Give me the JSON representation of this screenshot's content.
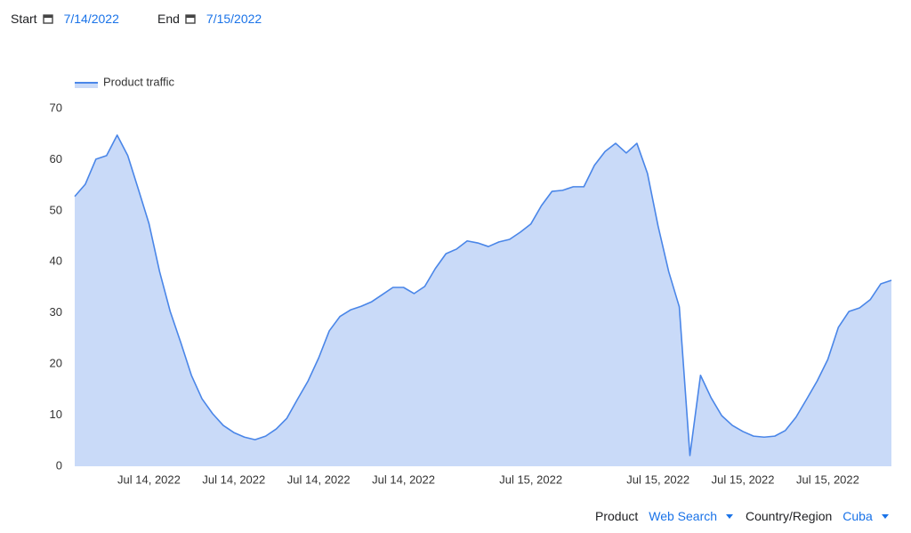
{
  "filters": {
    "start_label": "Start",
    "start_date": "7/14/2022",
    "end_label": "End",
    "end_date": "7/15/2022",
    "product_label": "Product",
    "product": "Web Search",
    "region_label": "Country/Region",
    "region": "Cuba"
  },
  "chart_data": {
    "type": "area",
    "categories": [
      null,
      null,
      null,
      null,
      null,
      null,
      null,
      "Jul 14, 2022",
      null,
      null,
      null,
      null,
      null,
      null,
      null,
      "Jul 14, 2022",
      null,
      null,
      null,
      null,
      null,
      null,
      null,
      "Jul 14, 2022",
      null,
      null,
      null,
      null,
      null,
      null,
      null,
      "Jul 14, 2022",
      null,
      null,
      null,
      null,
      null,
      null,
      null,
      null,
      null,
      null,
      null,
      "Jul 15, 2022",
      null,
      null,
      null,
      null,
      null,
      null,
      null,
      null,
      null,
      null,
      null,
      "Jul 15, 2022",
      null,
      null,
      null,
      null,
      null,
      null,
      null,
      "Jul 15, 2022",
      null,
      null,
      null,
      null,
      null,
      null,
      null,
      "Jul 15, 2022",
      null,
      null,
      null,
      null,
      null,
      null
    ],
    "series": [
      {
        "name": "Product traffic",
        "color": "#4a86e8",
        "fill": "#c9daf8",
        "values": [
          52.8,
          55.2,
          60.1,
          60.8,
          64.8,
          60.8,
          54.2,
          47.5,
          38.1,
          30.3,
          24.2,
          17.8,
          13.2,
          10.3,
          8.0,
          6.6,
          5.7,
          5.2,
          5.9,
          7.3,
          9.4,
          13.1,
          16.7,
          21.2,
          26.5,
          29.3,
          30.6,
          31.3,
          32.2,
          33.6,
          35.0,
          35.0,
          33.8,
          35.2,
          38.7,
          41.6,
          42.5,
          44.1,
          43.7,
          43.0,
          43.9,
          44.4,
          45.8,
          47.4,
          51.0,
          53.8,
          54.0,
          54.7,
          54.7,
          58.9,
          61.6,
          63.2,
          61.3,
          63.2,
          57.3,
          47.0,
          38.1,
          31.2,
          2.1,
          17.8,
          13.4,
          9.9,
          8.0,
          6.8,
          5.9,
          5.7,
          5.9,
          7.0,
          9.6,
          13.1,
          16.7,
          20.9,
          27.2,
          30.3,
          31.0,
          32.6,
          35.7,
          36.4
        ]
      }
    ],
    "ylim": [
      0,
      70
    ],
    "yticks": [
      0,
      10,
      20,
      30,
      40,
      50,
      60,
      70
    ],
    "grid": false,
    "legend": "top-left"
  }
}
